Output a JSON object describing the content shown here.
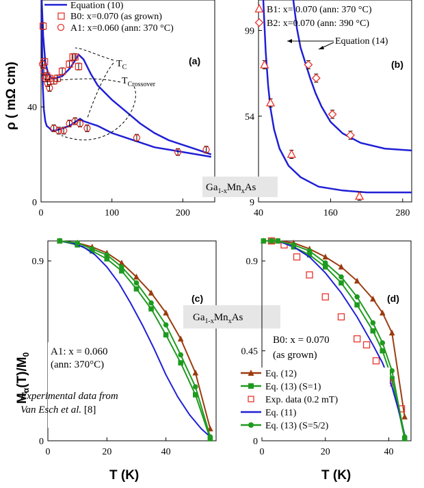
{
  "colors": {
    "blue": "#1f1fd6",
    "red": "#e8322a",
    "brown": "#9b3b0f",
    "green": "#1f9a1f",
    "black": "#000000"
  },
  "chart_data": [
    {
      "panel": "(a)",
      "type": "scatter",
      "xlim": [
        0,
        245
      ],
      "ylim": [
        0,
        85
      ],
      "xticks": [
        "0",
        "100",
        "200"
      ],
      "yticks": [
        "0",
        "40"
      ],
      "xtick_values": [
        0,
        100,
        200
      ],
      "ytick_values": [
        0,
        40
      ],
      "ylabel": "ρ  ( mΩ cm)",
      "legend": [
        "Equation (10)",
        "B0: x=0.070 (as grown)",
        "A1: x=0.060 (ann: 370 °C)"
      ],
      "annotations": [
        "T",
        "C",
        "T",
        "Crossover"
      ],
      "material_label": [
        "Ga",
        "1-x",
        "Mn",
        "x",
        "As"
      ],
      "series": [
        {
          "name": "B0: x=0.070 (as grown)",
          "marker": "square",
          "x": [
            3,
            5,
            8,
            12,
            18,
            23,
            30,
            40,
            45,
            48,
            53
          ],
          "y": [
            74,
            59,
            53,
            52,
            51,
            52,
            55,
            58,
            61,
            61,
            57
          ]
        },
        {
          "name": "A1: x=0.060 (ann: 370 °C)",
          "marker": "circle",
          "x": [
            2,
            4,
            6,
            9,
            12,
            18,
            25,
            32,
            40,
            48,
            55,
            65,
            135,
            193,
            233
          ],
          "y": [
            58,
            55,
            52,
            50,
            48,
            31,
            30,
            30,
            33,
            34,
            33,
            31,
            27,
            21,
            22
          ]
        },
        {
          "name": "Equation (10) B0",
          "line": true,
          "x": [
            1,
            3,
            6,
            10,
            15,
            20,
            30,
            40,
            47,
            53,
            60,
            70,
            80,
            100,
            120,
            140,
            160,
            180,
            200,
            220,
            240
          ],
          "y": [
            85,
            70,
            59,
            54,
            52,
            52,
            53,
            56,
            59,
            62,
            60,
            54,
            49,
            43,
            38,
            33,
            29,
            26,
            24,
            22,
            20
          ]
        },
        {
          "name": "Equation (10) A1",
          "line": true,
          "x": [
            1,
            2,
            4,
            6,
            8,
            12,
            15,
            20,
            30,
            40,
            50,
            55,
            60,
            70,
            80,
            100,
            120,
            140,
            160,
            180,
            200,
            220,
            240
          ],
          "y": [
            80,
            52,
            39,
            34,
            32,
            31,
            30,
            30,
            31,
            32,
            34,
            35,
            34,
            33,
            32,
            29,
            27,
            25,
            23,
            22,
            21,
            20,
            19
          ]
        }
      ]
    },
    {
      "panel": "(b)",
      "type": "scatter",
      "xlim": [
        40,
        295
      ],
      "ylim": [
        9,
        115
      ],
      "xticks": [
        "40",
        "160",
        "280"
      ],
      "yticks": [
        "9",
        "54",
        "99"
      ],
      "xtick_values": [
        40,
        160,
        280
      ],
      "ytick_values": [
        9,
        54,
        99
      ],
      "legend": [
        "B1: x= 0.070 (ann: 370 °C)",
        "B2: x=0.070 (ann: 390 °C)"
      ],
      "annotations": [
        "Equation (14)"
      ],
      "series": [
        {
          "name": "B1: x= 0.070 (ann: 370 °C)",
          "marker": "triangle",
          "x": [
            50,
            60,
            95,
            208
          ],
          "y": [
            81,
            61,
            34,
            12
          ]
        },
        {
          "name": "B2: x=0.070 (ann: 390 °C)",
          "marker": "diamond",
          "x": [
            123,
            136,
            163,
            193
          ],
          "y": [
            81,
            74,
            55,
            44
          ]
        },
        {
          "name": "Equation (14) B1",
          "line": true,
          "x": [
            48,
            52,
            56,
            60,
            66,
            75,
            90,
            110,
            140,
            180,
            220,
            260,
            295
          ],
          "y": [
            115,
            88,
            70,
            58,
            47,
            37,
            28,
            22,
            17,
            15,
            14,
            14,
            14
          ]
        },
        {
          "name": "Equation (14) B2",
          "line": true,
          "x": [
            98,
            104,
            110,
            118,
            126,
            135,
            145,
            160,
            180,
            210,
            250,
            295
          ],
          "y": [
            115,
            100,
            90,
            82,
            74,
            66,
            59,
            51,
            45,
            40,
            37,
            36
          ]
        }
      ]
    },
    {
      "panel": "(c)",
      "type": "line",
      "xlim": [
        0,
        57
      ],
      "ylim": [
        0,
        1.0
      ],
      "xticks": [
        "0",
        "20",
        "40"
      ],
      "yticks": [
        "0",
        "0.9"
      ],
      "xtick_values": [
        0,
        20,
        40
      ],
      "ytick_values": [
        0,
        0.9
      ],
      "ylabel": "M(T)/M",
      "xlabel": "T (K)",
      "annotations": [
        "A1: x = 0.060",
        "(ann: 370°C)",
        "Experimental data from",
        "Van Esch et al.",
        " [8]"
      ],
      "series": [
        {
          "name": "Eq. (12)",
          "marker": "triangle",
          "x": [
            4,
            10,
            15,
            20,
            25,
            30,
            35,
            40,
            45,
            50,
            55
          ],
          "y": [
            1.0,
            0.99,
            0.97,
            0.94,
            0.89,
            0.82,
            0.74,
            0.64,
            0.51,
            0.34,
            0.06
          ]
        },
        {
          "name": "Eq. (13) (S=1)",
          "marker": "square",
          "x": [
            4,
            10,
            15,
            20,
            25,
            30,
            35,
            40,
            45,
            50,
            55
          ],
          "y": [
            1.0,
            0.98,
            0.95,
            0.91,
            0.85,
            0.76,
            0.66,
            0.53,
            0.39,
            0.23,
            0.01
          ]
        },
        {
          "name": "Eq. (11)",
          "line": true,
          "x": [
            4,
            8,
            12,
            16,
            20,
            24,
            28,
            32,
            36,
            40,
            44,
            48,
            52,
            55
          ],
          "y": [
            1.0,
            0.99,
            0.97,
            0.93,
            0.87,
            0.79,
            0.69,
            0.58,
            0.46,
            0.33,
            0.22,
            0.13,
            0.06,
            0.02
          ]
        },
        {
          "name": "Eq. (13) (S=5/2)",
          "marker": "circle",
          "x": [
            4,
            10,
            15,
            20,
            25,
            30,
            35,
            40,
            45,
            50,
            55
          ],
          "y": [
            1.0,
            0.99,
            0.96,
            0.93,
            0.87,
            0.79,
            0.69,
            0.58,
            0.43,
            0.27,
            0.02
          ]
        }
      ]
    },
    {
      "panel": "(d)",
      "type": "line",
      "xlim": [
        0,
        47
      ],
      "ylim": [
        0,
        1.0
      ],
      "xticks": [
        "0",
        "20",
        "40"
      ],
      "yticks": [
        "0",
        "0.45",
        "0.9"
      ],
      "xtick_values": [
        0,
        20,
        40
      ],
      "ytick_values": [
        0,
        0.45,
        0.9
      ],
      "xlabel": "T (K)",
      "annotations": [
        "B0: x = 0.070",
        "(as grown)"
      ],
      "material_label": [
        "Ga",
        "1-x",
        "Mn",
        "x",
        "As"
      ],
      "legend": [
        "Eq. (12)",
        "Eq. (13) (S=1)",
        "Exp. data (0.2 mT)",
        "Eq. (11)",
        "Eq. (13) (S=5/2)"
      ],
      "series": [
        {
          "name": "Eq. (12)",
          "marker": "triangle",
          "x": [
            0.5,
            3,
            5,
            10,
            15,
            20,
            25,
            30,
            35,
            38,
            41,
            45
          ],
          "y": [
            1.0,
            1.0,
            1.0,
            0.99,
            0.96,
            0.92,
            0.87,
            0.8,
            0.71,
            0.64,
            0.54,
            0.12
          ]
        },
        {
          "name": "Eq. (13) (S=1)",
          "marker": "square",
          "x": [
            0.5,
            3,
            5,
            10,
            15,
            20,
            25,
            30,
            35,
            38,
            41,
            45
          ],
          "y": [
            1.0,
            1.0,
            1.0,
            0.97,
            0.93,
            0.87,
            0.79,
            0.68,
            0.55,
            0.45,
            0.31,
            0.01
          ]
        },
        {
          "name": "Exp. data (0.2 mT)",
          "marker": "open-square",
          "x": [
            3,
            7,
            11,
            15,
            20,
            25,
            30,
            33,
            36,
            40,
            44
          ],
          "y": [
            1.0,
            0.98,
            0.92,
            0.83,
            0.72,
            0.62,
            0.51,
            0.48,
            0.4,
            0.29,
            0.16
          ]
        },
        {
          "name": "Eq. (11)",
          "line": true,
          "x": [
            0.5,
            5,
            10,
            15,
            20,
            25,
            30,
            35,
            38,
            41,
            44,
            45
          ],
          "y": [
            1.0,
            1.0,
            0.97,
            0.92,
            0.84,
            0.74,
            0.62,
            0.48,
            0.39,
            0.27,
            0.1,
            0.03
          ]
        },
        {
          "name": "Eq. (13) (S=5/2)",
          "marker": "circle",
          "x": [
            0.5,
            3,
            5,
            10,
            15,
            20,
            25,
            30,
            35,
            38,
            41,
            45
          ],
          "y": [
            1.0,
            1.0,
            1.0,
            0.98,
            0.95,
            0.89,
            0.82,
            0.72,
            0.59,
            0.49,
            0.35,
            0.02
          ]
        }
      ]
    }
  ]
}
